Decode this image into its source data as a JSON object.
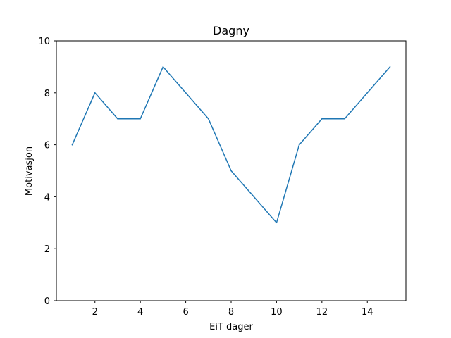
{
  "chart_data": {
    "type": "line",
    "title": "Dagny",
    "xlabel": "EiT dager",
    "ylabel": "Motivasjon",
    "x": [
      1,
      2,
      3,
      4,
      5,
      6,
      7,
      8,
      9,
      10,
      11,
      12,
      13,
      14,
      15
    ],
    "series": [
      {
        "values": [
          6,
          8,
          7,
          7,
          9,
          8,
          7,
          5,
          4,
          3,
          6,
          7,
          7,
          8,
          9
        ],
        "color": "#1f77b4"
      }
    ],
    "xlim": [
      0.3,
      15.7
    ],
    "ylim": [
      0,
      10
    ],
    "xticks": [
      2,
      4,
      6,
      8,
      10,
      12,
      14
    ],
    "yticks": [
      0,
      2,
      4,
      6,
      8,
      10
    ],
    "grid": false,
    "legend": "none"
  }
}
